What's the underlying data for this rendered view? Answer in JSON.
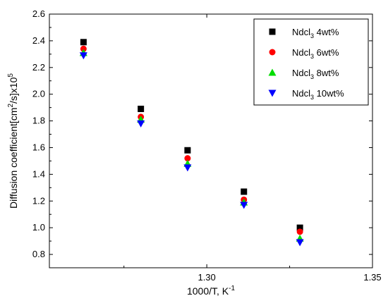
{
  "chart_data": {
    "type": "scatter",
    "title": "",
    "xlabel": {
      "base": "1000/T, K",
      "sup": "-1"
    },
    "ylabel": {
      "p1": "Diffusion coefficient[cm",
      "sup1": "2",
      "p2": "/s]x10",
      "sup2": "5"
    },
    "xlim": [
      1.2525,
      1.35
    ],
    "ylim": [
      0.7,
      2.6
    ],
    "x_ticks": [
      1.3,
      1.35
    ],
    "x_tick_labels": [
      "1.30",
      "1.35"
    ],
    "y_ticks": [
      0.8,
      1.0,
      1.2,
      1.4,
      1.6,
      1.8,
      2.0,
      2.2,
      2.4,
      2.6
    ],
    "y_tick_labels": [
      "0.8",
      "1.0",
      "1.2",
      "1.4",
      "1.6",
      "1.8",
      "2.0",
      "2.2",
      "2.4",
      "2.6"
    ],
    "x": [
      1.2628,
      1.2801,
      1.2942,
      1.3112,
      1.3281
    ],
    "legend_position": "top-right",
    "grid": false,
    "series": [
      {
        "name": "NdcI3 4wt%",
        "label_base": "Ndcl",
        "label_sub": "3",
        "label_rest": " 4wt%",
        "marker": "square",
        "color": "#000000",
        "values": [
          2.39,
          1.89,
          1.58,
          1.27,
          1.0
        ]
      },
      {
        "name": "NdcI3 6wt%",
        "label_base": "Ndcl",
        "label_sub": "3",
        "label_rest": " 6wt%",
        "marker": "circle",
        "color": "#ff0000",
        "values": [
          2.34,
          1.83,
          1.52,
          1.21,
          0.97
        ]
      },
      {
        "name": "NdcI3 8wt%",
        "label_base": "Ndcl",
        "label_sub": "3",
        "label_rest": " 8wt%",
        "marker": "triangle-up",
        "color": "#00dd00",
        "values": [
          2.31,
          1.81,
          1.48,
          1.19,
          0.92
        ]
      },
      {
        "name": "NdcI3 10wt%",
        "label_base": "Ndcl",
        "label_sub": "3",
        "label_rest": " 10wt%",
        "marker": "triangle-down",
        "color": "#0000ff",
        "values": [
          2.29,
          1.78,
          1.45,
          1.17,
          0.89
        ]
      }
    ]
  }
}
